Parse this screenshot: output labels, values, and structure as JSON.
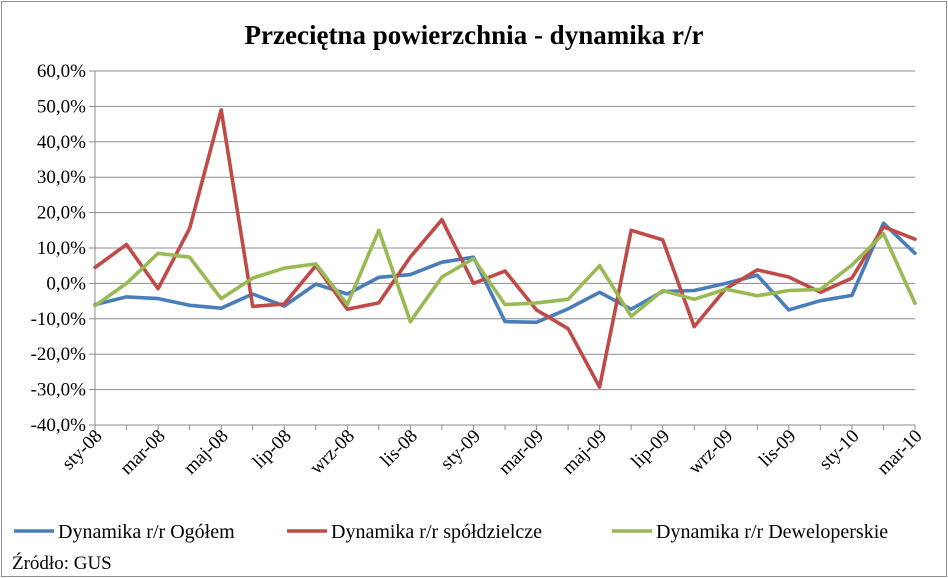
{
  "chart_data": {
    "type": "line",
    "title": "Przeciętna powierzchnia - dynamika r/r",
    "xlabel": "",
    "ylabel": "",
    "ylim": [
      -40,
      60
    ],
    "yticks": [
      60,
      50,
      40,
      30,
      20,
      10,
      0,
      -10,
      -20,
      -30,
      -40
    ],
    "ytick_labels": [
      "60,0%",
      "50,0%",
      "40,0%",
      "30,0%",
      "20,0%",
      "10,0%",
      "0,0%",
      "-10,0%",
      "-20,0%",
      "-30,0%",
      "-40,0%"
    ],
    "x_labels": [
      "sty-08",
      "mar-08",
      "maj-08",
      "lip-08",
      "wrz-08",
      "lis-08",
      "sty-09",
      "mar-09",
      "maj-09",
      "lip-09",
      "wrz-09",
      "lis-09",
      "sty-10",
      "mar-10"
    ],
    "categories": [
      "sty-08",
      "lut-08",
      "mar-08",
      "kwi-08",
      "maj-08",
      "cze-08",
      "lip-08",
      "sie-08",
      "wrz-08",
      "paź-08",
      "lis-08",
      "gru-08",
      "sty-09",
      "lut-09",
      "mar-09",
      "kwi-09",
      "maj-09",
      "cze-09",
      "lip-09",
      "sie-09",
      "wrz-09",
      "paź-09",
      "lis-09",
      "gru-09",
      "sty-10",
      "lut-10",
      "mar-10"
    ],
    "grid": "horizontal",
    "legend_position": "bottom",
    "series": [
      {
        "name": "Dynamika r/r Ogółem",
        "color": "#4a7ebb",
        "values": [
          -6.0,
          -3.8,
          -4.3,
          -6.2,
          -7.0,
          -3.0,
          -6.4,
          -0.2,
          -3.0,
          1.7,
          2.5,
          6.0,
          7.4,
          -10.8,
          -11.0,
          -7.2,
          -2.5,
          -7.3,
          -2.3,
          -2.0,
          0.0,
          2.3,
          -7.5,
          -4.9,
          -3.4,
          17.0,
          8.5
        ]
      },
      {
        "name": "Dynamika r/r spółdzielcze",
        "color": "#be4b48",
        "values": [
          4.5,
          11.0,
          -1.5,
          15.5,
          49.0,
          -6.5,
          -5.8,
          5.0,
          -7.3,
          -5.5,
          7.5,
          18.0,
          0.0,
          3.5,
          -7.5,
          -12.8,
          -29.3,
          15.0,
          12.3,
          -12.2,
          -1.5,
          3.8,
          1.8,
          -2.5,
          1.5,
          16.0,
          12.5
        ]
      },
      {
        "name": "Dynamika r/r Deweloperskie",
        "color": "#98b954",
        "values": [
          -6.3,
          0.0,
          8.5,
          7.4,
          -4.3,
          1.5,
          4.3,
          5.5,
          -6.0,
          15.0,
          -10.8,
          1.8,
          7.0,
          -6.0,
          -5.5,
          -4.5,
          5.0,
          -9.3,
          -2.0,
          -4.5,
          -1.6,
          -3.5,
          -2.0,
          -1.7,
          5.2,
          14.0,
          -5.6
        ]
      }
    ],
    "source": "Źródło: GUS"
  }
}
